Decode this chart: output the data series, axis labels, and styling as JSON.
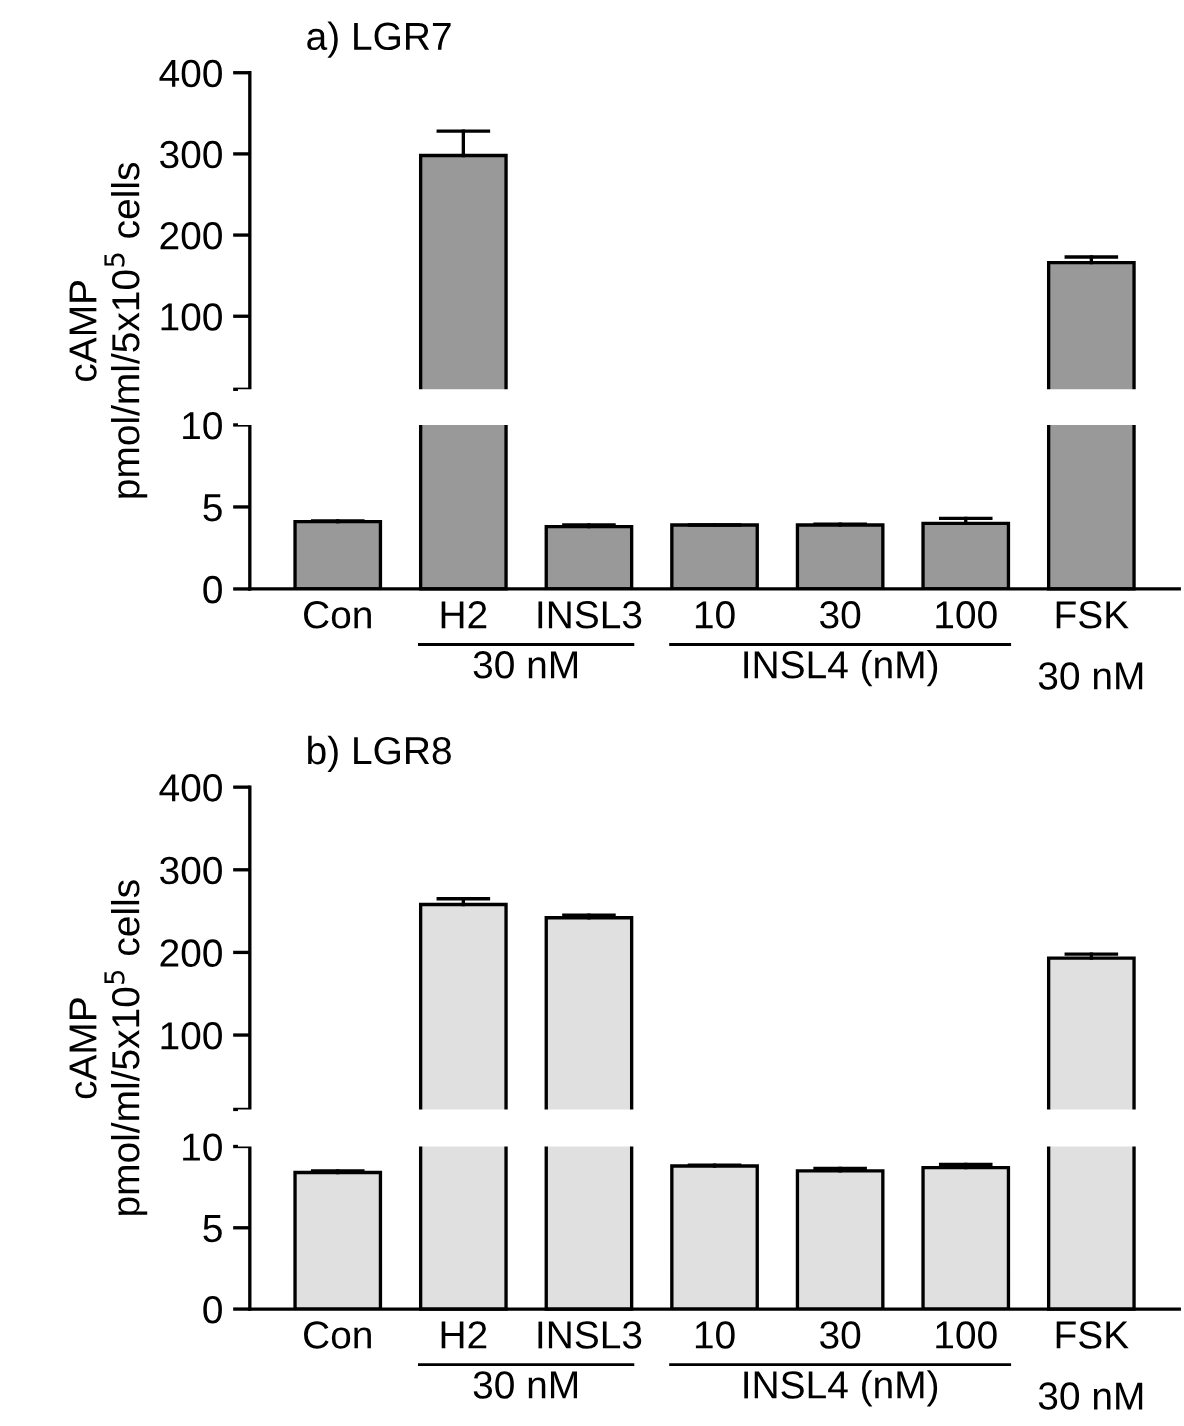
{
  "chart_data": [
    {
      "type": "bar",
      "title": "a) LGR7",
      "ylabel": "cAMP\npmol/ml/5x10$^{5}$ cells",
      "values": [
        null,
        298,
        null,
        null,
        null,
        null,
        166
      ],
      "errors": [
        null,
        [
          298,
          328
        ],
        null,
        null,
        null,
        null,
        [
          166,
          173
        ]
      ],
      "color": "#999999",
      "tick_labels": "y",
      "ylim": [
        10,
        400
      ],
      "yticks": [
        {
          "value": 10,
          "label": null
        },
        100,
        200,
        300,
        400
      ]
    },
    {
      "type": "bar",
      "categories": [
        "Con",
        "H2",
        "INSL3",
        "10",
        "30",
        "100",
        "FSK"
      ],
      "values": [
        4.1,
        null,
        3.8,
        3.9,
        3.9,
        4.0,
        null
      ],
      "errors": [
        [
          4.1,
          4.15
        ],
        null,
        [
          3.8,
          3.9
        ],
        [
          3.9,
          3.9
        ],
        [
          3.9,
          3.95
        ],
        [
          4.0,
          4.3
        ],
        null
      ],
      "color": "#999999",
      "ylim": [
        0,
        10
      ],
      "yticks": [
        0,
        5,
        10
      ],
      "annotations": [
        "30 nM",
        "INSL4 (nM)",
        "30 nM"
      ]
    },
    {
      "type": "bar",
      "title": "b) LGR8",
      "ylabel": "cAMP\npmol/ml/5x10$^{5}$ cells",
      "values": [
        null,
        258,
        242,
        null,
        null,
        null,
        193
      ],
      "errors": [
        null,
        [
          258,
          265
        ],
        [
          242,
          245
        ],
        null,
        null,
        null,
        [
          193,
          198
        ]
      ],
      "color": "#e0e0e0",
      "tick_labels": "y",
      "ylim": [
        10,
        400
      ],
      "yticks": [
        {
          "value": 10,
          "label": null
        },
        100,
        200,
        300,
        400
      ]
    },
    {
      "type": "bar",
      "categories": [
        "Con",
        "H2",
        "INSL3",
        "10",
        "30",
        "100",
        "FSK"
      ],
      "values": [
        8.4,
        null,
        null,
        8.8,
        8.5,
        8.7,
        null
      ],
      "errors": [
        [
          8.4,
          8.5
        ],
        null,
        null,
        [
          8.8,
          8.85
        ],
        [
          8.5,
          8.65
        ],
        [
          8.7,
          8.9
        ],
        null
      ],
      "color": "#e0e0e0",
      "ylim": [
        0,
        10
      ],
      "yticks": [
        0,
        5,
        10
      ],
      "annotations": [
        "30 nM",
        "INSL4 (nM)",
        "30 nM"
      ]
    }
  ]
}
